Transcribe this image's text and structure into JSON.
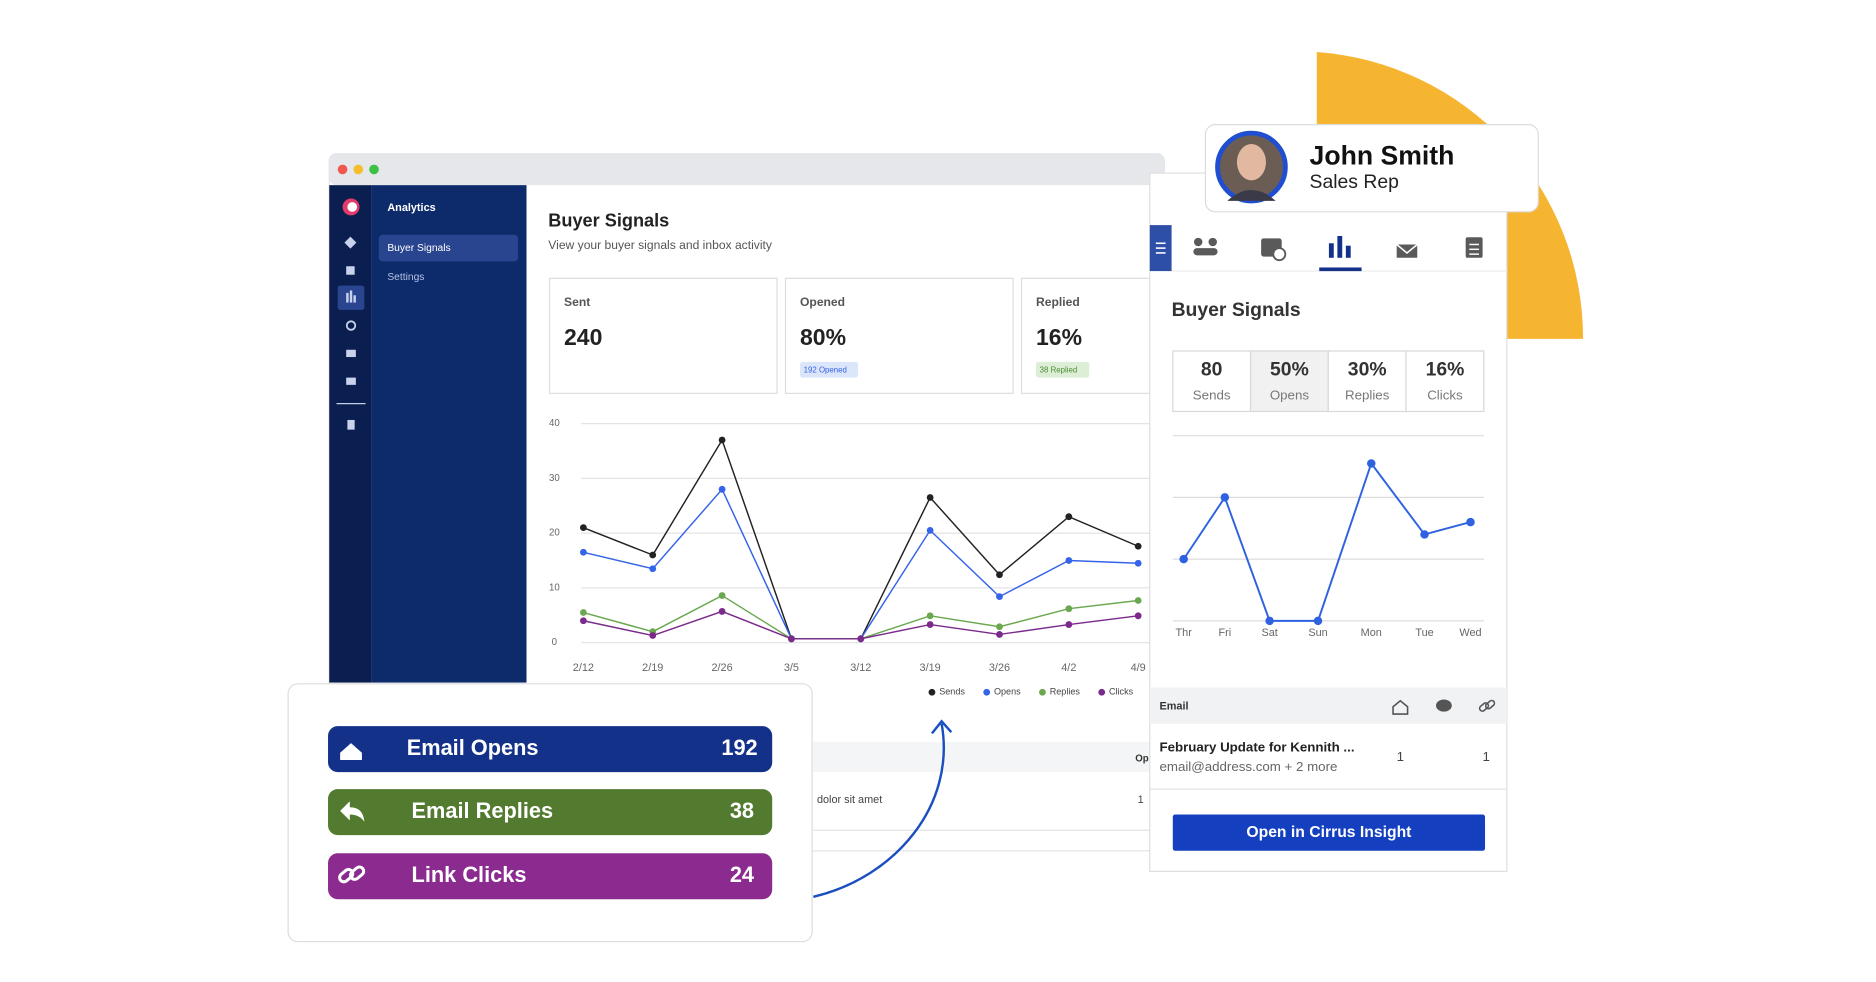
{
  "window": {
    "nav_title": "Analytics",
    "nav_items": [
      "Buyer Signals",
      "Settings"
    ],
    "title": "Buyer Signals",
    "subtitle": "View your buyer signals and inbox activity",
    "cards": [
      {
        "label": "Sent",
        "value": "240"
      },
      {
        "label": "Opened",
        "value": "80%",
        "badge": "192 Opened"
      },
      {
        "label": "Replied",
        "value": "16%",
        "badge": "38 Replied"
      }
    ],
    "table": {
      "header": "Op",
      "row": [
        "dolor sit amet",
        "1"
      ]
    }
  },
  "chart_data": [
    {
      "type": "line",
      "categories": [
        "2/12",
        "2/19",
        "2/26",
        "3/5",
        "3/12",
        "3/19",
        "3/26",
        "4/2",
        "4/9"
      ],
      "series": [
        {
          "name": "Sends",
          "color": "#222222",
          "values": [
            21,
            16,
            37,
            0.7,
            0.7,
            26.5,
            12.4,
            23,
            17.6
          ]
        },
        {
          "name": "Opens",
          "color": "#3563e9",
          "values": [
            16.5,
            13.5,
            28,
            0.7,
            0.7,
            20.5,
            8.4,
            15,
            14.5
          ]
        },
        {
          "name": "Replies",
          "color": "#6aa84f",
          "values": [
            5.5,
            2,
            8.6,
            0.7,
            0.7,
            4.9,
            2.9,
            6.2,
            7.7
          ]
        },
        {
          "name": "Clicks",
          "color": "#7b2a8c",
          "values": [
            4,
            1.3,
            5.7,
            0.7,
            0.7,
            3.3,
            1.5,
            3.3,
            4.9
          ]
        }
      ],
      "ylim": [
        0,
        40
      ],
      "yticks": [
        0,
        10,
        20,
        30,
        40
      ],
      "grid": true,
      "legend": "bottom"
    },
    {
      "type": "line",
      "categories": [
        "Thr",
        "Fri",
        "Sat",
        "Sun",
        "Mon",
        "Tue",
        "Wed"
      ],
      "series": [
        {
          "color": "#2f62e0",
          "values": [
            1,
            2,
            0,
            0,
            2.55,
            1.4,
            1.6
          ]
        }
      ],
      "ylim": [
        0,
        3
      ],
      "yticks": [
        0,
        1,
        2,
        3
      ],
      "grid": true,
      "ytick_labels": false
    }
  ],
  "signals_card": {
    "items": [
      {
        "label": "Email Opens",
        "count": "192"
      },
      {
        "label": "Email Replies",
        "count": "38"
      },
      {
        "label": "Link Clicks",
        "count": "24"
      }
    ]
  },
  "profile": {
    "name": "John Smith",
    "role": "Sales Rep"
  },
  "panel": {
    "title": "Buyer Signals",
    "stats": [
      {
        "value": "80",
        "label": "Sends"
      },
      {
        "value": "50%",
        "label": "Opens"
      },
      {
        "value": "30%",
        "label": "Replies"
      },
      {
        "value": "16%",
        "label": "Clicks"
      }
    ],
    "email_header": "Email",
    "email": {
      "subject": "February Update for Kennith ...",
      "recipients": "email@address.com + 2 more",
      "counts": [
        "1",
        "1"
      ]
    },
    "button": "Open in Cirrus Insight"
  }
}
